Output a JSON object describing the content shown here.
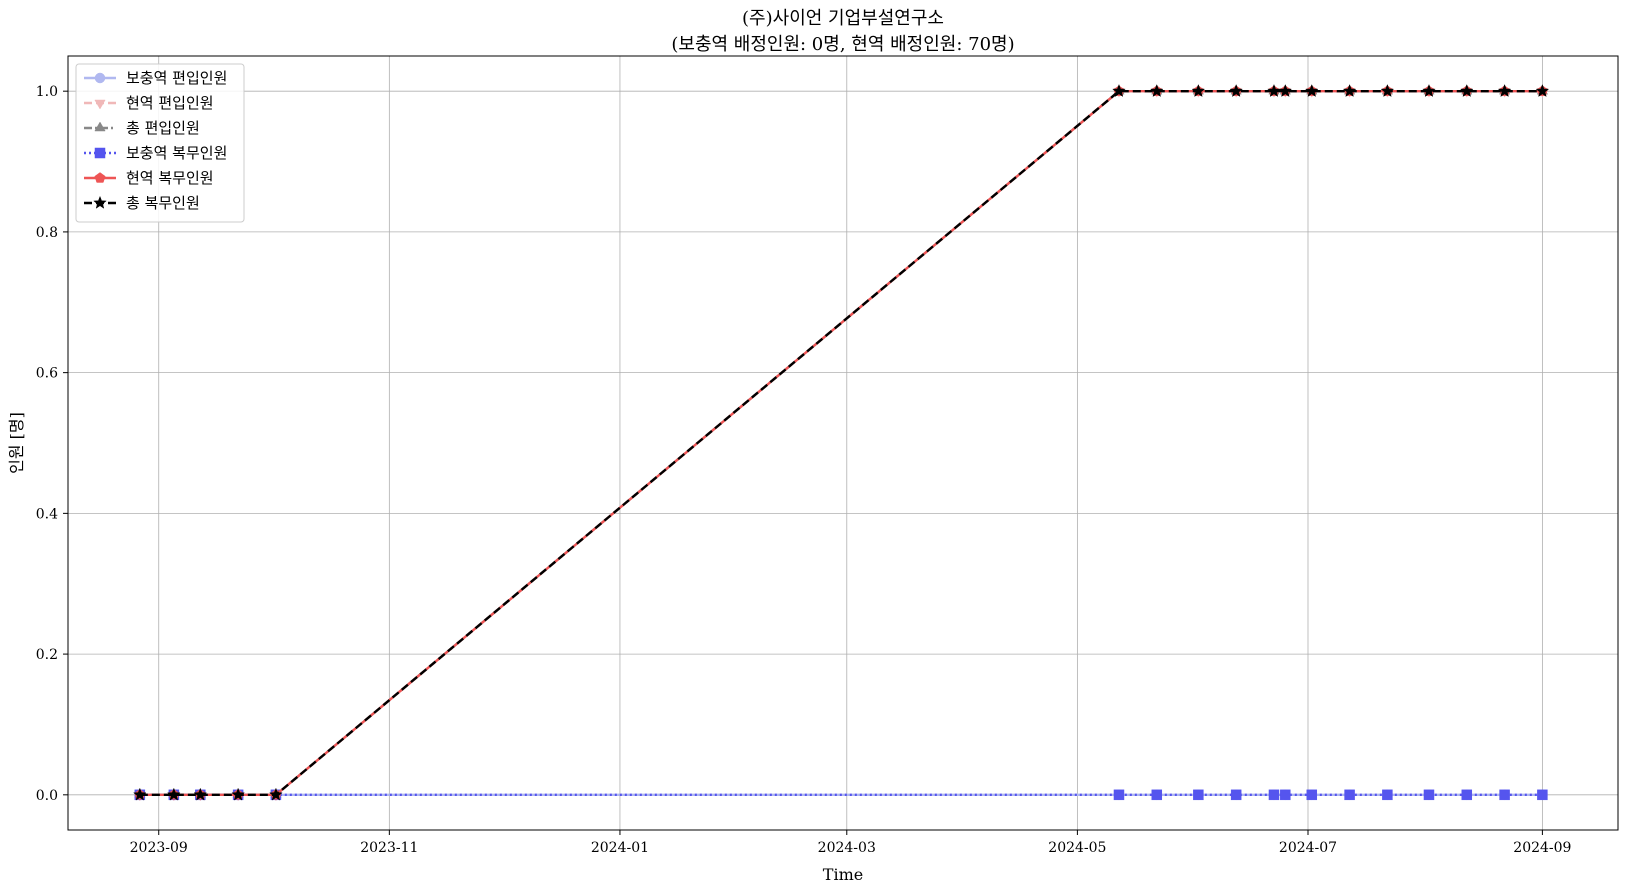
{
  "chart_data": {
    "type": "line",
    "title": "(주)사이언 기업부설연구소",
    "subtitle": "(보충역 배정인원: 0명, 현역 배정인원: 70명)",
    "xlabel": "Time",
    "ylabel": "인원 [명]",
    "ylim": [
      -0.05,
      1.05
    ],
    "xlim": [
      "2023-08-08",
      "2024-09-21"
    ],
    "x_ticks": [
      "2023-09",
      "2023-11",
      "2024-01",
      "2024-03",
      "2024-05",
      "2024-07",
      "2024-09"
    ],
    "y_ticks": [
      "0.0",
      "0.2",
      "0.4",
      "0.6",
      "0.8",
      "1.0"
    ],
    "grid": true,
    "legend_position": "top-left",
    "x": [
      "2023-08-27",
      "2023-09-05",
      "2023-09-12",
      "2023-09-22",
      "2023-10-02",
      "2024-05-12",
      "2024-05-22",
      "2024-06-02",
      "2024-06-12",
      "2024-06-22",
      "2024-06-25",
      "2024-07-02",
      "2024-07-12",
      "2024-07-22",
      "2024-08-02",
      "2024-08-12",
      "2024-08-22",
      "2024-09-01"
    ],
    "series": [
      {
        "name": "보충역 편입인원",
        "color": "#b0b8f0",
        "style": "solid",
        "marker": "circle",
        "values": [
          0,
          0,
          0,
          0,
          0,
          0,
          0,
          0,
          0,
          0,
          0,
          0,
          0,
          0,
          0,
          0,
          0,
          0
        ]
      },
      {
        "name": "현역 편입인원",
        "color": "#f0b8b8",
        "style": "dashed",
        "marker": "triangle-down",
        "values": [
          0,
          0,
          0,
          0,
          0,
          1,
          1,
          1,
          1,
          1,
          1,
          1,
          1,
          1,
          1,
          1,
          1,
          1
        ]
      },
      {
        "name": "총 편입인원",
        "color": "#888888",
        "style": "dashdot",
        "marker": "triangle-up",
        "values": [
          0,
          0,
          0,
          0,
          0,
          1,
          1,
          1,
          1,
          1,
          1,
          1,
          1,
          1,
          1,
          1,
          1,
          1
        ]
      },
      {
        "name": "보충역 복무인원",
        "color": "#5555ee",
        "style": "dotted",
        "marker": "square",
        "values": [
          0,
          0,
          0,
          0,
          0,
          0,
          0,
          0,
          0,
          0,
          0,
          0,
          0,
          0,
          0,
          0,
          0,
          0
        ]
      },
      {
        "name": "현역 복무인원",
        "color": "#ee5555",
        "style": "solid",
        "marker": "pentagon",
        "values": [
          0,
          0,
          0,
          0,
          0,
          1,
          1,
          1,
          1,
          1,
          1,
          1,
          1,
          1,
          1,
          1,
          1,
          1
        ]
      },
      {
        "name": "총 복무인원",
        "color": "#000000",
        "style": "dashed",
        "marker": "star",
        "values": [
          0,
          0,
          0,
          0,
          0,
          1,
          1,
          1,
          1,
          1,
          1,
          1,
          1,
          1,
          1,
          1,
          1,
          1
        ]
      }
    ]
  }
}
